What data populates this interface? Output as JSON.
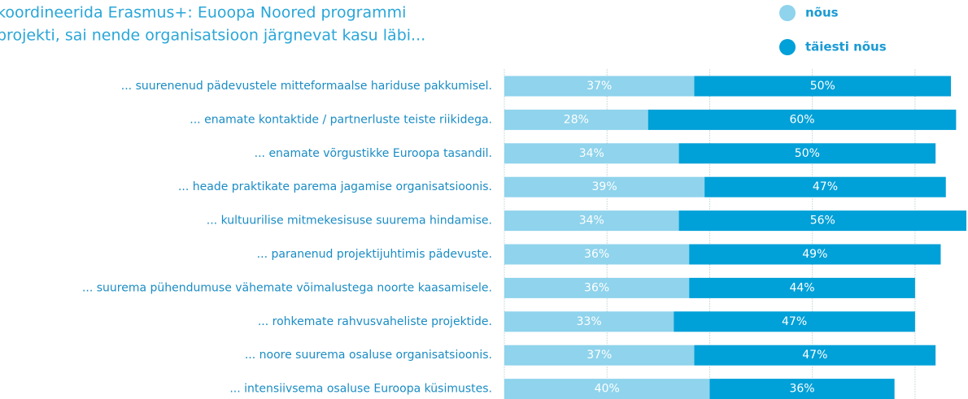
{
  "chart_data": {
    "type": "stacked_bar_horizontal",
    "title": [
      "koordineerida Erasmus+: Euoopa Noored programmi",
      "projekti, sai nende organisatsioon järgnevat kasu läbi..."
    ],
    "categories": [
      "...  suurenenud pädevustele mitteformaalse hariduse pakkumisel.",
      "... enamate kontaktide / partnerluste teiste riikidega.",
      "... enamate võrgustikke Euroopa tasandil.",
      "... heade praktikate parema jagamise organisatsioonis.",
      "... kultuurilise mitmekesisuse suurema hindamise.",
      "... paranenud projektijuhtimis pädevuste.",
      "... suurema pühendumuse vähemate võimalustega noorte kaasamisele.",
      "... rohkemate rahvusvaheliste projektide.",
      "... noore suurema osaluse organisatsioonis.",
      "... intensiivsema osaluse Euroopa küsimustes."
    ],
    "series": [
      {
        "name": "nõus",
        "color": "#8fd3ec",
        "values": [
          37,
          28,
          34,
          39,
          34,
          36,
          36,
          33,
          37,
          40
        ],
        "value_labels": [
          "37%",
          "28%",
          "34%",
          "39%",
          "34%",
          "36%",
          "36%",
          "33%",
          "37%",
          "40%"
        ]
      },
      {
        "name": "täiesti nõus",
        "color": "#00a0d8",
        "values": [
          50,
          60,
          50,
          47,
          56,
          49,
          44,
          47,
          47,
          36
        ],
        "value_labels": [
          "50%",
          "60%",
          "50%",
          "47%",
          "56%",
          "49%",
          "44%",
          "47%",
          "47%",
          "36%"
        ]
      }
    ],
    "xlim": [
      0,
      90
    ],
    "xticks": [
      0,
      20,
      40,
      60,
      80
    ],
    "grid": true
  }
}
